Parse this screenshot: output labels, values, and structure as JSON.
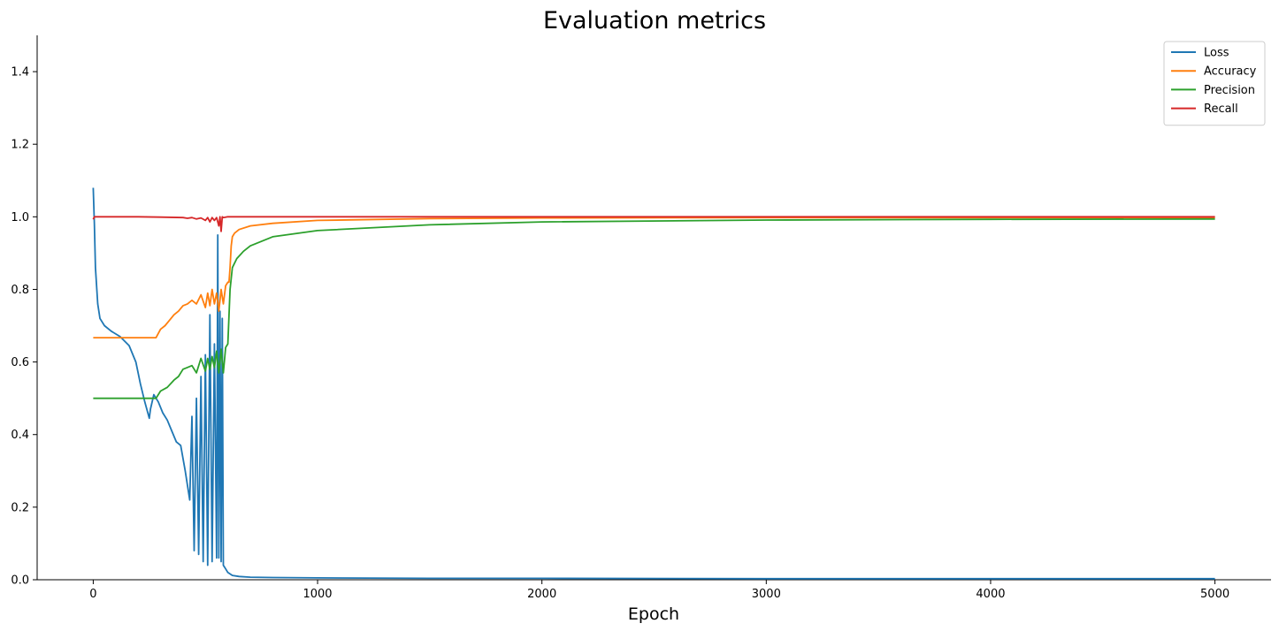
{
  "chart_data": {
    "type": "line",
    "title": "Evaluation metrics",
    "xlabel": "Epoch",
    "ylabel": "",
    "xlim": [
      -250,
      5250
    ],
    "ylim": [
      0.0,
      1.5
    ],
    "xticks": [
      0,
      1000,
      2000,
      3000,
      4000,
      5000
    ],
    "yticks": [
      0.0,
      0.2,
      0.4,
      0.6,
      0.8,
      1.0,
      1.2,
      1.4
    ],
    "xtick_labels": [
      "0",
      "1000",
      "2000",
      "3000",
      "4000",
      "5000"
    ],
    "ytick_labels": [
      "0.0",
      "0.2",
      "0.4",
      "0.6",
      "0.8",
      "1.0",
      "1.2",
      "1.4"
    ],
    "grid": false,
    "legend_position": "top-right",
    "series": [
      {
        "name": "Loss",
        "color": "#1f77b4",
        "x": [
          0,
          5,
          10,
          20,
          30,
          50,
          80,
          120,
          160,
          190,
          210,
          230,
          250,
          255,
          270,
          290,
          310,
          330,
          350,
          370,
          390,
          410,
          430,
          440,
          450,
          460,
          470,
          480,
          490,
          500,
          510,
          520,
          530,
          540,
          550,
          555,
          560,
          565,
          570,
          575,
          580,
          590,
          600,
          620,
          650,
          700,
          800,
          1000,
          1500,
          2000,
          3000,
          4000,
          5000
        ],
        "y": [
          1.08,
          0.98,
          0.86,
          0.76,
          0.72,
          0.7,
          0.685,
          0.67,
          0.645,
          0.6,
          0.54,
          0.49,
          0.445,
          0.47,
          0.51,
          0.49,
          0.46,
          0.44,
          0.41,
          0.38,
          0.37,
          0.3,
          0.22,
          0.45,
          0.08,
          0.5,
          0.07,
          0.56,
          0.05,
          0.62,
          0.04,
          0.73,
          0.05,
          0.65,
          0.06,
          0.95,
          0.06,
          0.74,
          0.05,
          0.72,
          0.04,
          0.03,
          0.02,
          0.012,
          0.009,
          0.007,
          0.006,
          0.005,
          0.004,
          0.004,
          0.003,
          0.003,
          0.003
        ]
      },
      {
        "name": "Accuracy",
        "color": "#ff7f0e",
        "x": [
          0,
          100,
          200,
          280,
          300,
          320,
          340,
          360,
          380,
          400,
          420,
          440,
          460,
          480,
          500,
          510,
          520,
          530,
          540,
          550,
          560,
          570,
          580,
          590,
          600,
          605,
          610,
          615,
          620,
          630,
          650,
          700,
          800,
          1000,
          1500,
          2000,
          3000,
          4000,
          5000
        ],
        "y": [
          0.667,
          0.667,
          0.667,
          0.667,
          0.69,
          0.7,
          0.715,
          0.73,
          0.74,
          0.755,
          0.76,
          0.77,
          0.76,
          0.785,
          0.75,
          0.79,
          0.755,
          0.8,
          0.76,
          0.79,
          0.74,
          0.8,
          0.76,
          0.81,
          0.82,
          0.82,
          0.86,
          0.92,
          0.945,
          0.955,
          0.965,
          0.975,
          0.982,
          0.99,
          0.995,
          0.997,
          0.998,
          0.998,
          0.998
        ]
      },
      {
        "name": "Precision",
        "color": "#2ca02c",
        "x": [
          0,
          100,
          200,
          280,
          300,
          330,
          360,
          380,
          400,
          420,
          440,
          460,
          480,
          500,
          510,
          520,
          530,
          540,
          550,
          560,
          570,
          580,
          590,
          600,
          610,
          620,
          640,
          670,
          700,
          800,
          1000,
          1500,
          2000,
          3000,
          4000,
          5000
        ],
        "y": [
          0.5,
          0.5,
          0.5,
          0.5,
          0.52,
          0.53,
          0.55,
          0.56,
          0.58,
          0.585,
          0.59,
          0.57,
          0.61,
          0.575,
          0.61,
          0.58,
          0.615,
          0.585,
          0.63,
          0.57,
          0.635,
          0.57,
          0.64,
          0.65,
          0.8,
          0.86,
          0.885,
          0.905,
          0.92,
          0.945,
          0.962,
          0.978,
          0.986,
          0.991,
          0.993,
          0.994
        ]
      },
      {
        "name": "Recall",
        "color": "#d62728",
        "x": [
          0,
          5,
          10,
          100,
          200,
          300,
          400,
          420,
          440,
          460,
          480,
          500,
          510,
          520,
          530,
          540,
          550,
          560,
          565,
          570,
          575,
          580,
          600,
          1000,
          2000,
          3000,
          4000,
          5000
        ],
        "y": [
          0.993,
          1.0,
          1.0,
          1.0,
          1.0,
          0.999,
          0.998,
          0.996,
          0.998,
          0.994,
          0.997,
          0.99,
          0.998,
          0.986,
          0.998,
          0.99,
          0.998,
          0.975,
          1.0,
          0.96,
          1.0,
          0.998,
          1.0,
          1.0,
          1.0,
          1.0,
          1.0,
          1.0
        ]
      }
    ]
  }
}
